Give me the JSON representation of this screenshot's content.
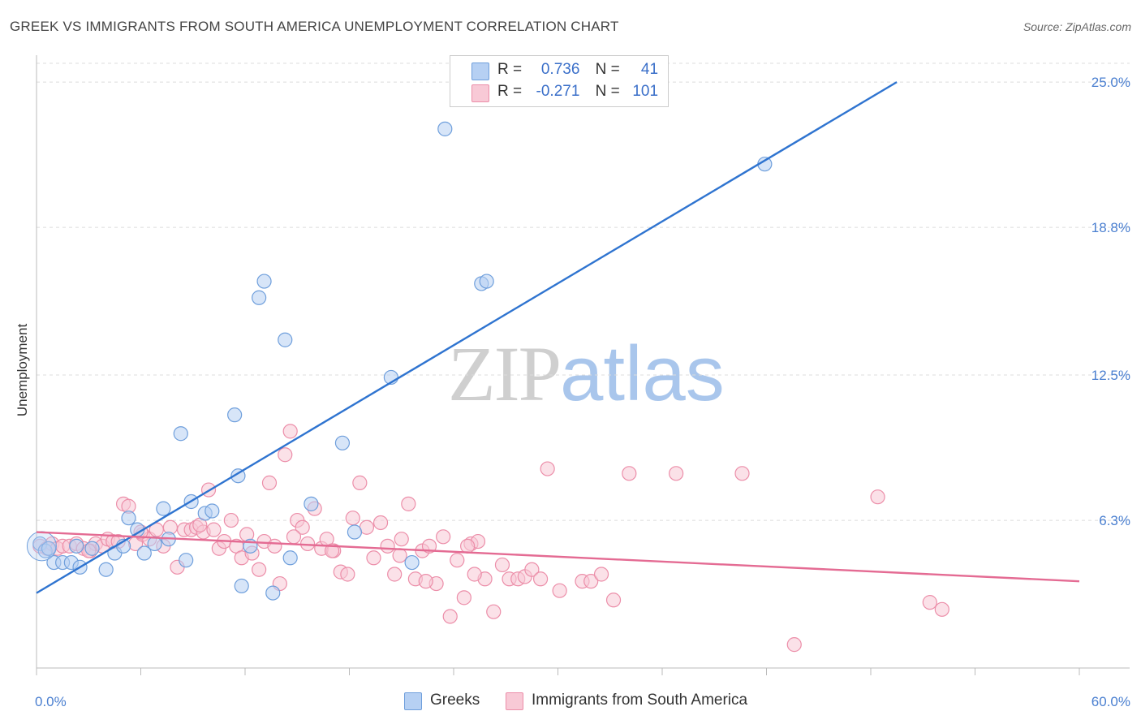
{
  "title": "GREEK VS IMMIGRANTS FROM SOUTH AMERICA UNEMPLOYMENT CORRELATION CHART",
  "source": "Source: ZipAtlas.com",
  "watermark": {
    "zip": "ZIP",
    "atlas": "atlas"
  },
  "legend": {
    "rows": [
      {
        "r_label": "R =",
        "r_value": "0.736",
        "n_label": "N =",
        "n_value": "41",
        "color": "#a8c8f0"
      },
      {
        "r_label": "R =",
        "r_value": "-0.271",
        "n_label": "N =",
        "n_value": "101",
        "color": "#f6b8cb"
      }
    ]
  },
  "bottom_legend": {
    "greeks": "Greeks",
    "immigrants": "Immigrants from South America"
  },
  "chart_data": {
    "type": "scatter",
    "ylabel": "Unemployment",
    "xlabel": "",
    "xlim": [
      0,
      60
    ],
    "ylim": [
      0,
      25.8
    ],
    "x_tick_labels": [
      "0.0%",
      "60.0%"
    ],
    "y_ticks": [
      6.3,
      12.5,
      18.8,
      25.0
    ],
    "y_tick_labels": [
      "6.3%",
      "12.5%",
      "18.8%",
      "25.0%"
    ],
    "grid": true,
    "colors": {
      "greeks": "#6f9fdc",
      "greeks_fill": "#b6d0f3",
      "greeks_line": "#2f74d0",
      "immigrants": "#ec8ea9",
      "immigrants_fill": "#f8c9d6",
      "immigrants_line": "#e46b93"
    },
    "series": [
      {
        "name": "Greeks",
        "points": [
          [
            0.2,
            5.3
          ],
          [
            0.5,
            5.0
          ],
          [
            1.0,
            4.5
          ],
          [
            1.5,
            4.5
          ],
          [
            2.0,
            4.5
          ],
          [
            2.5,
            4.3
          ],
          [
            3.2,
            5.1
          ],
          [
            4.0,
            4.2
          ],
          [
            4.5,
            4.9
          ],
          [
            5.0,
            5.2
          ],
          [
            5.3,
            6.4
          ],
          [
            5.8,
            5.9
          ],
          [
            6.2,
            4.9
          ],
          [
            6.8,
            5.3
          ],
          [
            7.3,
            6.8
          ],
          [
            7.6,
            5.5
          ],
          [
            8.3,
            10.0
          ],
          [
            8.6,
            4.6
          ],
          [
            8.9,
            7.1
          ],
          [
            9.7,
            6.6
          ],
          [
            10.1,
            6.7
          ],
          [
            11.4,
            10.8
          ],
          [
            11.6,
            8.2
          ],
          [
            11.8,
            3.5
          ],
          [
            12.3,
            5.2
          ],
          [
            12.8,
            15.8
          ],
          [
            13.1,
            16.5
          ],
          [
            13.6,
            3.2
          ],
          [
            14.3,
            14.0
          ],
          [
            14.6,
            4.7
          ],
          [
            15.8,
            7.0
          ],
          [
            17.6,
            9.6
          ],
          [
            18.3,
            5.8
          ],
          [
            20.4,
            12.4
          ],
          [
            21.6,
            4.5
          ],
          [
            23.5,
            23.0
          ],
          [
            25.6,
            16.4
          ],
          [
            25.9,
            16.5
          ],
          [
            41.9,
            21.5
          ],
          [
            0.7,
            5.1
          ],
          [
            2.3,
            5.2
          ]
        ],
        "trend": {
          "x": [
            0.0,
            49.5
          ],
          "y": [
            3.2,
            25.0
          ]
        }
      },
      {
        "name": "Immigrants from South America",
        "points": [
          [
            0.2,
            5.2
          ],
          [
            0.6,
            5.1
          ],
          [
            0.9,
            5.3
          ],
          [
            1.2,
            5.1
          ],
          [
            1.5,
            5.2
          ],
          [
            1.9,
            5.2
          ],
          [
            2.3,
            5.3
          ],
          [
            2.7,
            5.1
          ],
          [
            3.1,
            5.0
          ],
          [
            3.4,
            5.3
          ],
          [
            3.8,
            5.2
          ],
          [
            4.1,
            5.5
          ],
          [
            4.4,
            5.4
          ],
          [
            4.7,
            5.4
          ],
          [
            5.0,
            7.0
          ],
          [
            5.3,
            6.9
          ],
          [
            5.7,
            5.3
          ],
          [
            6.1,
            5.7
          ],
          [
            6.5,
            5.5
          ],
          [
            6.9,
            5.9
          ],
          [
            7.3,
            5.2
          ],
          [
            7.7,
            6.0
          ],
          [
            8.1,
            4.3
          ],
          [
            8.5,
            5.9
          ],
          [
            8.9,
            5.9
          ],
          [
            9.2,
            6.0
          ],
          [
            9.6,
            5.8
          ],
          [
            9.9,
            7.6
          ],
          [
            10.2,
            5.9
          ],
          [
            10.5,
            5.1
          ],
          [
            10.8,
            5.4
          ],
          [
            11.2,
            6.3
          ],
          [
            11.5,
            5.2
          ],
          [
            11.8,
            4.7
          ],
          [
            12.1,
            5.7
          ],
          [
            12.4,
            4.9
          ],
          [
            12.8,
            4.2
          ],
          [
            13.1,
            5.4
          ],
          [
            13.4,
            7.9
          ],
          [
            13.7,
            5.2
          ],
          [
            14.0,
            3.6
          ],
          [
            14.3,
            9.1
          ],
          [
            14.6,
            10.1
          ],
          [
            15.0,
            6.3
          ],
          [
            15.3,
            6.0
          ],
          [
            15.6,
            5.3
          ],
          [
            16.0,
            6.8
          ],
          [
            16.4,
            5.1
          ],
          [
            16.7,
            5.5
          ],
          [
            17.1,
            5.0
          ],
          [
            17.5,
            4.1
          ],
          [
            17.9,
            4.0
          ],
          [
            18.2,
            6.4
          ],
          [
            18.6,
            7.9
          ],
          [
            19.0,
            6.0
          ],
          [
            19.4,
            4.7
          ],
          [
            19.8,
            6.2
          ],
          [
            20.2,
            5.2
          ],
          [
            20.6,
            4.0
          ],
          [
            21.0,
            5.5
          ],
          [
            21.4,
            7.0
          ],
          [
            21.8,
            3.8
          ],
          [
            22.2,
            5.0
          ],
          [
            22.6,
            5.2
          ],
          [
            23.0,
            3.6
          ],
          [
            23.4,
            5.6
          ],
          [
            23.8,
            2.2
          ],
          [
            24.2,
            4.6
          ],
          [
            24.6,
            3.0
          ],
          [
            25.0,
            5.3
          ],
          [
            25.4,
            5.4
          ],
          [
            25.8,
            3.8
          ],
          [
            26.3,
            2.4
          ],
          [
            26.8,
            4.4
          ],
          [
            27.2,
            3.8
          ],
          [
            27.7,
            3.8
          ],
          [
            28.1,
            3.9
          ],
          [
            28.5,
            4.2
          ],
          [
            29.0,
            3.8
          ],
          [
            29.4,
            8.5
          ],
          [
            30.1,
            3.3
          ],
          [
            31.4,
            3.7
          ],
          [
            31.9,
            3.7
          ],
          [
            32.5,
            4.0
          ],
          [
            33.2,
            2.9
          ],
          [
            34.1,
            8.3
          ],
          [
            36.8,
            8.3
          ],
          [
            40.6,
            8.3
          ],
          [
            48.4,
            7.3
          ],
          [
            51.4,
            2.8
          ],
          [
            52.1,
            2.5
          ],
          [
            43.6,
            1.0
          ],
          [
            25.2,
            4.0
          ],
          [
            22.4,
            3.7
          ],
          [
            17.0,
            5.0
          ],
          [
            24.8,
            5.2
          ],
          [
            20.9,
            4.8
          ],
          [
            14.8,
            5.6
          ],
          [
            9.4,
            6.1
          ],
          [
            6.0,
            5.8
          ],
          [
            3.0,
            5.0
          ]
        ],
        "trend": {
          "x": [
            0.0,
            60.0
          ],
          "y": [
            5.8,
            3.7
          ]
        }
      }
    ]
  }
}
